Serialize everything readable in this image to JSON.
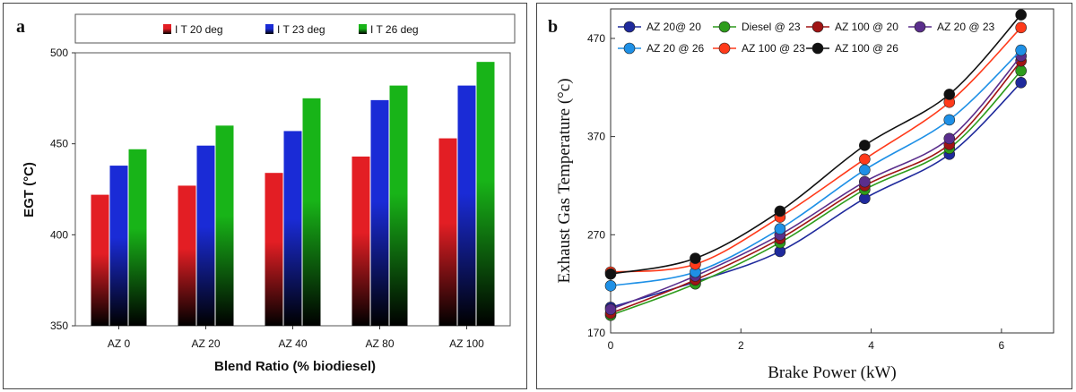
{
  "chart_data": [
    {
      "panel": "a",
      "type": "bar",
      "title": "",
      "xlabel": "Blend Ratio  (% biodiesel)",
      "ylabel": "EGT (°C)",
      "ylim": [
        350,
        500
      ],
      "yticks": [
        "350",
        "400",
        "450",
        "500"
      ],
      "categories": [
        "AZ 0",
        "AZ 20",
        "AZ 40",
        "AZ 80",
        "AZ 100"
      ],
      "series": [
        {
          "name": "I T 20 deg",
          "color": "#e31e24",
          "values": [
            422,
            427,
            434,
            443,
            453
          ]
        },
        {
          "name": "I T 23 deg",
          "color": "#1a2bd6",
          "values": [
            438,
            449,
            457,
            474,
            482
          ]
        },
        {
          "name": "I T 26 deg",
          "color": "#18b418",
          "values": [
            447,
            460,
            475,
            482,
            495
          ]
        }
      ],
      "legend_position": "top"
    },
    {
      "panel": "b",
      "type": "line",
      "xlabel": "Brake Power (kW)",
      "ylabel": "Exhaust Gas Temperature (°c)",
      "xlim": [
        0,
        6.8
      ],
      "ylim": [
        170,
        500
      ],
      "xticks": [
        "0",
        "2",
        "4",
        "6"
      ],
      "yticks": [
        "170",
        "270",
        "370",
        "470"
      ],
      "x": [
        0,
        1.3,
        2.6,
        3.9,
        5.2,
        6.3
      ],
      "series": [
        {
          "name": "AZ 20@ 20",
          "color": "#1f2a9c",
          "values": [
            196,
            222,
            253,
            307,
            352,
            425
          ]
        },
        {
          "name": "Diesel @ 23",
          "color": "#2e9c1c",
          "values": [
            188,
            220,
            262,
            316,
            358,
            437
          ]
        },
        {
          "name": "AZ 100 @ 20",
          "color": "#a01414",
          "values": [
            190,
            224,
            266,
            320,
            362,
            447
          ]
        },
        {
          "name": "AZ 20 @ 23",
          "color": "#5a2e8c",
          "values": [
            194,
            228,
            270,
            324,
            368,
            452
          ]
        },
        {
          "name": "AZ 20 @ 26",
          "color": "#1e90e6",
          "values": [
            218,
            232,
            276,
            336,
            387,
            458
          ]
        },
        {
          "name": "AZ 100 @ 23",
          "color": "#ff3a1a",
          "values": [
            232,
            240,
            288,
            347,
            405,
            481
          ]
        },
        {
          "name": "AZ 100 @ 26",
          "color": "#111111",
          "values": [
            230,
            246,
            294,
            361,
            413,
            494
          ]
        }
      ],
      "legend_position": "top"
    }
  ],
  "panels": {
    "a": {
      "letter": "a"
    },
    "b": {
      "letter": "b"
    }
  }
}
